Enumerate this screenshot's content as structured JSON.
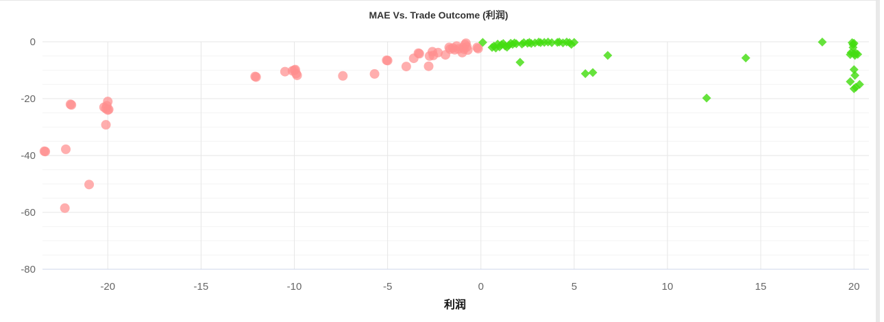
{
  "chart_data": {
    "type": "scatter",
    "title": "MAE Vs. Trade Outcome (利润)",
    "xlabel": "利润",
    "ylabel": "",
    "xlim": [
      -23.5,
      20.8
    ],
    "ylim": [
      -80,
      0
    ],
    "xticks": [
      -20,
      -15,
      -10,
      -5,
      0,
      5,
      10,
      15,
      20
    ],
    "yticks": [
      0,
      -20,
      -40,
      -60,
      -80
    ],
    "xtick_labels": [
      "-20",
      "-15",
      "-10",
      "-5",
      "0",
      "5",
      "10",
      "15",
      "20"
    ],
    "ytick_labels": [
      "0",
      "-20",
      "-40",
      "-60",
      "-80"
    ],
    "grid": true,
    "series": [
      {
        "marker": "circle",
        "color": "#ff8f8f",
        "points": [
          [
            -23.4,
            -38.5
          ],
          [
            -23.35,
            -38.6
          ],
          [
            -22.3,
            -58.5
          ],
          [
            -22.25,
            -37.8
          ],
          [
            -22.0,
            -22.0
          ],
          [
            -21.95,
            -22.2
          ],
          [
            -21.0,
            -50.2
          ],
          [
            -20.2,
            -23.0
          ],
          [
            -20.1,
            -23.5
          ],
          [
            -20.05,
            -22.5
          ],
          [
            -20.0,
            -21.0
          ],
          [
            -20.0,
            -24.0
          ],
          [
            -19.95,
            -23.8
          ],
          [
            -20.1,
            -29.2
          ],
          [
            -12.1,
            -12.2
          ],
          [
            -12.05,
            -12.4
          ],
          [
            -10.5,
            -10.5
          ],
          [
            -10.1,
            -10.2
          ],
          [
            -10.0,
            -10.0
          ],
          [
            -9.95,
            -9.8
          ],
          [
            -9.9,
            -11.2
          ],
          [
            -9.85,
            -11.8
          ],
          [
            -7.4,
            -12.0
          ],
          [
            -5.7,
            -11.3
          ],
          [
            -5.05,
            -6.5
          ],
          [
            -5.0,
            -6.6
          ],
          [
            -4.0,
            -8.7
          ],
          [
            -3.6,
            -5.8
          ],
          [
            -3.35,
            -4.0
          ],
          [
            -3.3,
            -4.2
          ],
          [
            -2.8,
            -8.6
          ],
          [
            -2.75,
            -5.0
          ],
          [
            -2.6,
            -3.5
          ],
          [
            -2.55,
            -4.8
          ],
          [
            -2.3,
            -3.8
          ],
          [
            -1.9,
            -4.6
          ],
          [
            -1.7,
            -2.0
          ],
          [
            -1.65,
            -2.6
          ],
          [
            -1.5,
            -2.2
          ],
          [
            -1.4,
            -2.8
          ],
          [
            -1.3,
            -1.5
          ],
          [
            -1.2,
            -2.5
          ],
          [
            -1.0,
            -3.8
          ],
          [
            -0.95,
            -2.0
          ],
          [
            -0.9,
            -2.6
          ],
          [
            -0.85,
            -1.0
          ],
          [
            -0.8,
            -0.5
          ],
          [
            -0.75,
            -1.8
          ],
          [
            -0.7,
            -2.9
          ],
          [
            -0.2,
            -2.0
          ],
          [
            -0.15,
            -2.4
          ]
        ]
      },
      {
        "marker": "diamond",
        "color": "#44dd11",
        "points": [
          [
            0.1,
            -0.2
          ],
          [
            0.6,
            -2.0
          ],
          [
            0.7,
            -1.5
          ],
          [
            0.8,
            -2.2
          ],
          [
            0.9,
            -0.8
          ],
          [
            1.0,
            -1.8
          ],
          [
            1.1,
            -1.0
          ],
          [
            1.2,
            -0.6
          ],
          [
            1.3,
            -1.5
          ],
          [
            1.4,
            -1.9
          ],
          [
            1.5,
            -1.2
          ],
          [
            1.6,
            -0.5
          ],
          [
            1.7,
            -0.9
          ],
          [
            1.8,
            -0.4
          ],
          [
            1.9,
            -0.7
          ],
          [
            2.1,
            -7.2
          ],
          [
            2.2,
            -0.8
          ],
          [
            2.3,
            -0.3
          ],
          [
            2.5,
            -0.5
          ],
          [
            2.6,
            -0.2
          ],
          [
            2.7,
            -0.6
          ],
          [
            2.9,
            -0.4
          ],
          [
            3.1,
            -0.1
          ],
          [
            3.2,
            -0.3
          ],
          [
            3.4,
            -0.2
          ],
          [
            3.6,
            -0.1
          ],
          [
            3.8,
            -0.3
          ],
          [
            4.1,
            -0.2
          ],
          [
            4.2,
            -0.1
          ],
          [
            4.4,
            -0.4
          ],
          [
            4.6,
            -0.1
          ],
          [
            4.75,
            -0.3
          ],
          [
            4.85,
            -0.9
          ],
          [
            5.0,
            -0.2
          ],
          [
            5.6,
            -11.2
          ],
          [
            6.0,
            -10.8
          ],
          [
            6.8,
            -4.8
          ],
          [
            12.1,
            -19.8
          ],
          [
            14.2,
            -5.7
          ],
          [
            18.3,
            -0.1
          ],
          [
            19.8,
            -4.5
          ],
          [
            19.85,
            -3.8
          ],
          [
            19.9,
            -0.3
          ],
          [
            19.95,
            -1.0
          ],
          [
            19.95,
            -2.0
          ],
          [
            20.0,
            -0.5
          ],
          [
            20.0,
            -4.2
          ],
          [
            20.05,
            -4.8
          ],
          [
            20.1,
            -4.0
          ],
          [
            20.2,
            -4.4
          ],
          [
            19.8,
            -14.0
          ],
          [
            20.0,
            -9.8
          ],
          [
            20.05,
            -11.8
          ],
          [
            20.0,
            -16.5
          ],
          [
            20.1,
            -16.0
          ],
          [
            20.3,
            -15.0
          ]
        ]
      }
    ]
  }
}
